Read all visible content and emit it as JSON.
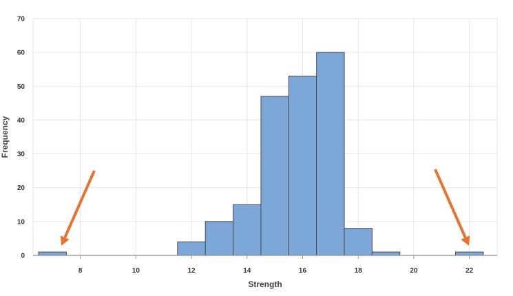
{
  "chart_data": {
    "type": "bar",
    "title": "",
    "xlabel": "Strength",
    "ylabel": "Frequency",
    "xlim": [
      6.3,
      23
    ],
    "ylim": [
      0,
      70
    ],
    "grid": true,
    "x_ticks": [
      8,
      10,
      12,
      14,
      16,
      18,
      20,
      22
    ],
    "y_ticks": [
      0,
      10,
      20,
      30,
      40,
      50,
      60,
      70
    ],
    "bin_width": 1,
    "bins": [
      {
        "start": 6.5,
        "end": 7.5,
        "count": 1
      },
      {
        "start": 11.5,
        "end": 12.5,
        "count": 4
      },
      {
        "start": 12.5,
        "end": 13.5,
        "count": 10
      },
      {
        "start": 13.5,
        "end": 14.5,
        "count": 15
      },
      {
        "start": 14.5,
        "end": 15.5,
        "count": 47
      },
      {
        "start": 15.5,
        "end": 16.5,
        "count": 53
      },
      {
        "start": 16.5,
        "end": 17.5,
        "count": 60
      },
      {
        "start": 17.5,
        "end": 18.5,
        "count": 8
      },
      {
        "start": 18.5,
        "end": 19.5,
        "count": 1
      },
      {
        "start": 21.5,
        "end": 22.5,
        "count": 1
      }
    ],
    "annotations": [
      {
        "type": "arrow",
        "target_bin": 0
      },
      {
        "type": "arrow",
        "target_bin": 9
      }
    ],
    "colors": {
      "bar_fill": "#7DA7D9",
      "bar_stroke": "#4A4A4A",
      "arrow": "#E87330",
      "grid": "#E6E6E6"
    }
  }
}
